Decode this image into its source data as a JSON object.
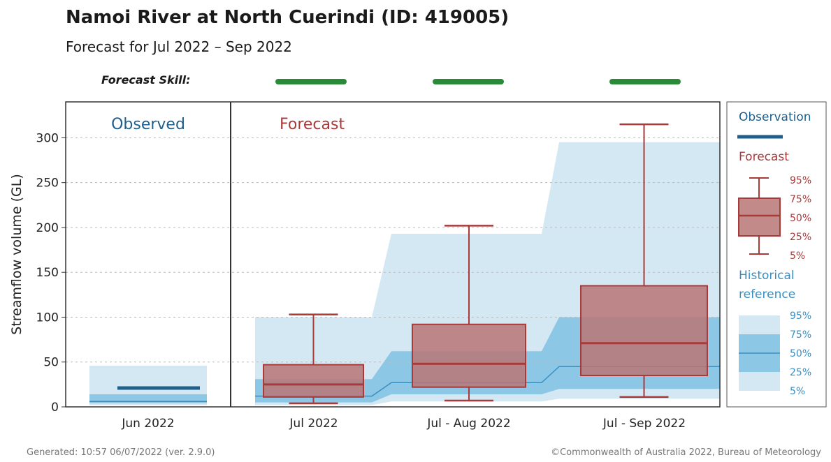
{
  "title": "Namoi River at North Cuerindi (ID: 419005)",
  "subtitle": "Forecast for Jul 2022 – Sep 2022",
  "skill_label": "Forecast Skill:",
  "skill_color": "#2a8a3a",
  "panels": {
    "observed_label": "Observed",
    "forecast_label": "Forecast"
  },
  "legend": {
    "observation_title": "Observation",
    "forecast_title": "Forecast",
    "historical_title_line1": "Historical",
    "historical_title_line2": "reference",
    "percentiles": [
      "95%",
      "75%",
      "50%",
      "25%",
      "5%"
    ]
  },
  "colors": {
    "observed": "#1f5f8b",
    "forecast": "#a83a3a",
    "forecast_fill": "#b97676",
    "hist_outer": "#d4e8f4",
    "hist_inner": "#8cc7e6",
    "hist_median": "#3a8fc2"
  },
  "footer": {
    "generated": "Generated: 10:57 06/07/2022 (ver. 2.9.0)",
    "copyright": "©Commonwealth of Australia 2022, Bureau of Meteorology"
  },
  "chart_data": {
    "type": "box",
    "title": "Namoi River at North Cuerindi (ID: 419005)",
    "ylabel": "Streamflow volume (GL)",
    "ylim": [
      0,
      340
    ],
    "yticks": [
      0,
      50,
      100,
      150,
      200,
      250,
      300
    ],
    "grid": true,
    "legend_position": "right",
    "observed": {
      "category": "Jun 2022",
      "value": 21,
      "historical": {
        "p5": 2,
        "p25": 4,
        "p50": 6,
        "p75": 14,
        "p95": 46
      }
    },
    "categories": [
      "Jul 2022",
      "Jul - Aug 2022",
      "Jul - Sep 2022"
    ],
    "forecast_skill": [
      "good",
      "good",
      "good"
    ],
    "forecast": [
      {
        "p5": 4,
        "p25": 11,
        "p50": 25,
        "p75": 47,
        "p95": 103
      },
      {
        "p5": 7,
        "p25": 22,
        "p50": 48,
        "p75": 92,
        "p95": 202
      },
      {
        "p5": 11,
        "p25": 35,
        "p50": 71,
        "p75": 135,
        "p95": 315
      }
    ],
    "historical": [
      {
        "p5": 2,
        "p25": 5,
        "p50": 12,
        "p75": 31,
        "p95": 100
      },
      {
        "p5": 6,
        "p25": 14,
        "p50": 27,
        "p75": 62,
        "p95": 193
      },
      {
        "p5": 9,
        "p25": 20,
        "p50": 45,
        "p75": 100,
        "p95": 295
      }
    ]
  }
}
